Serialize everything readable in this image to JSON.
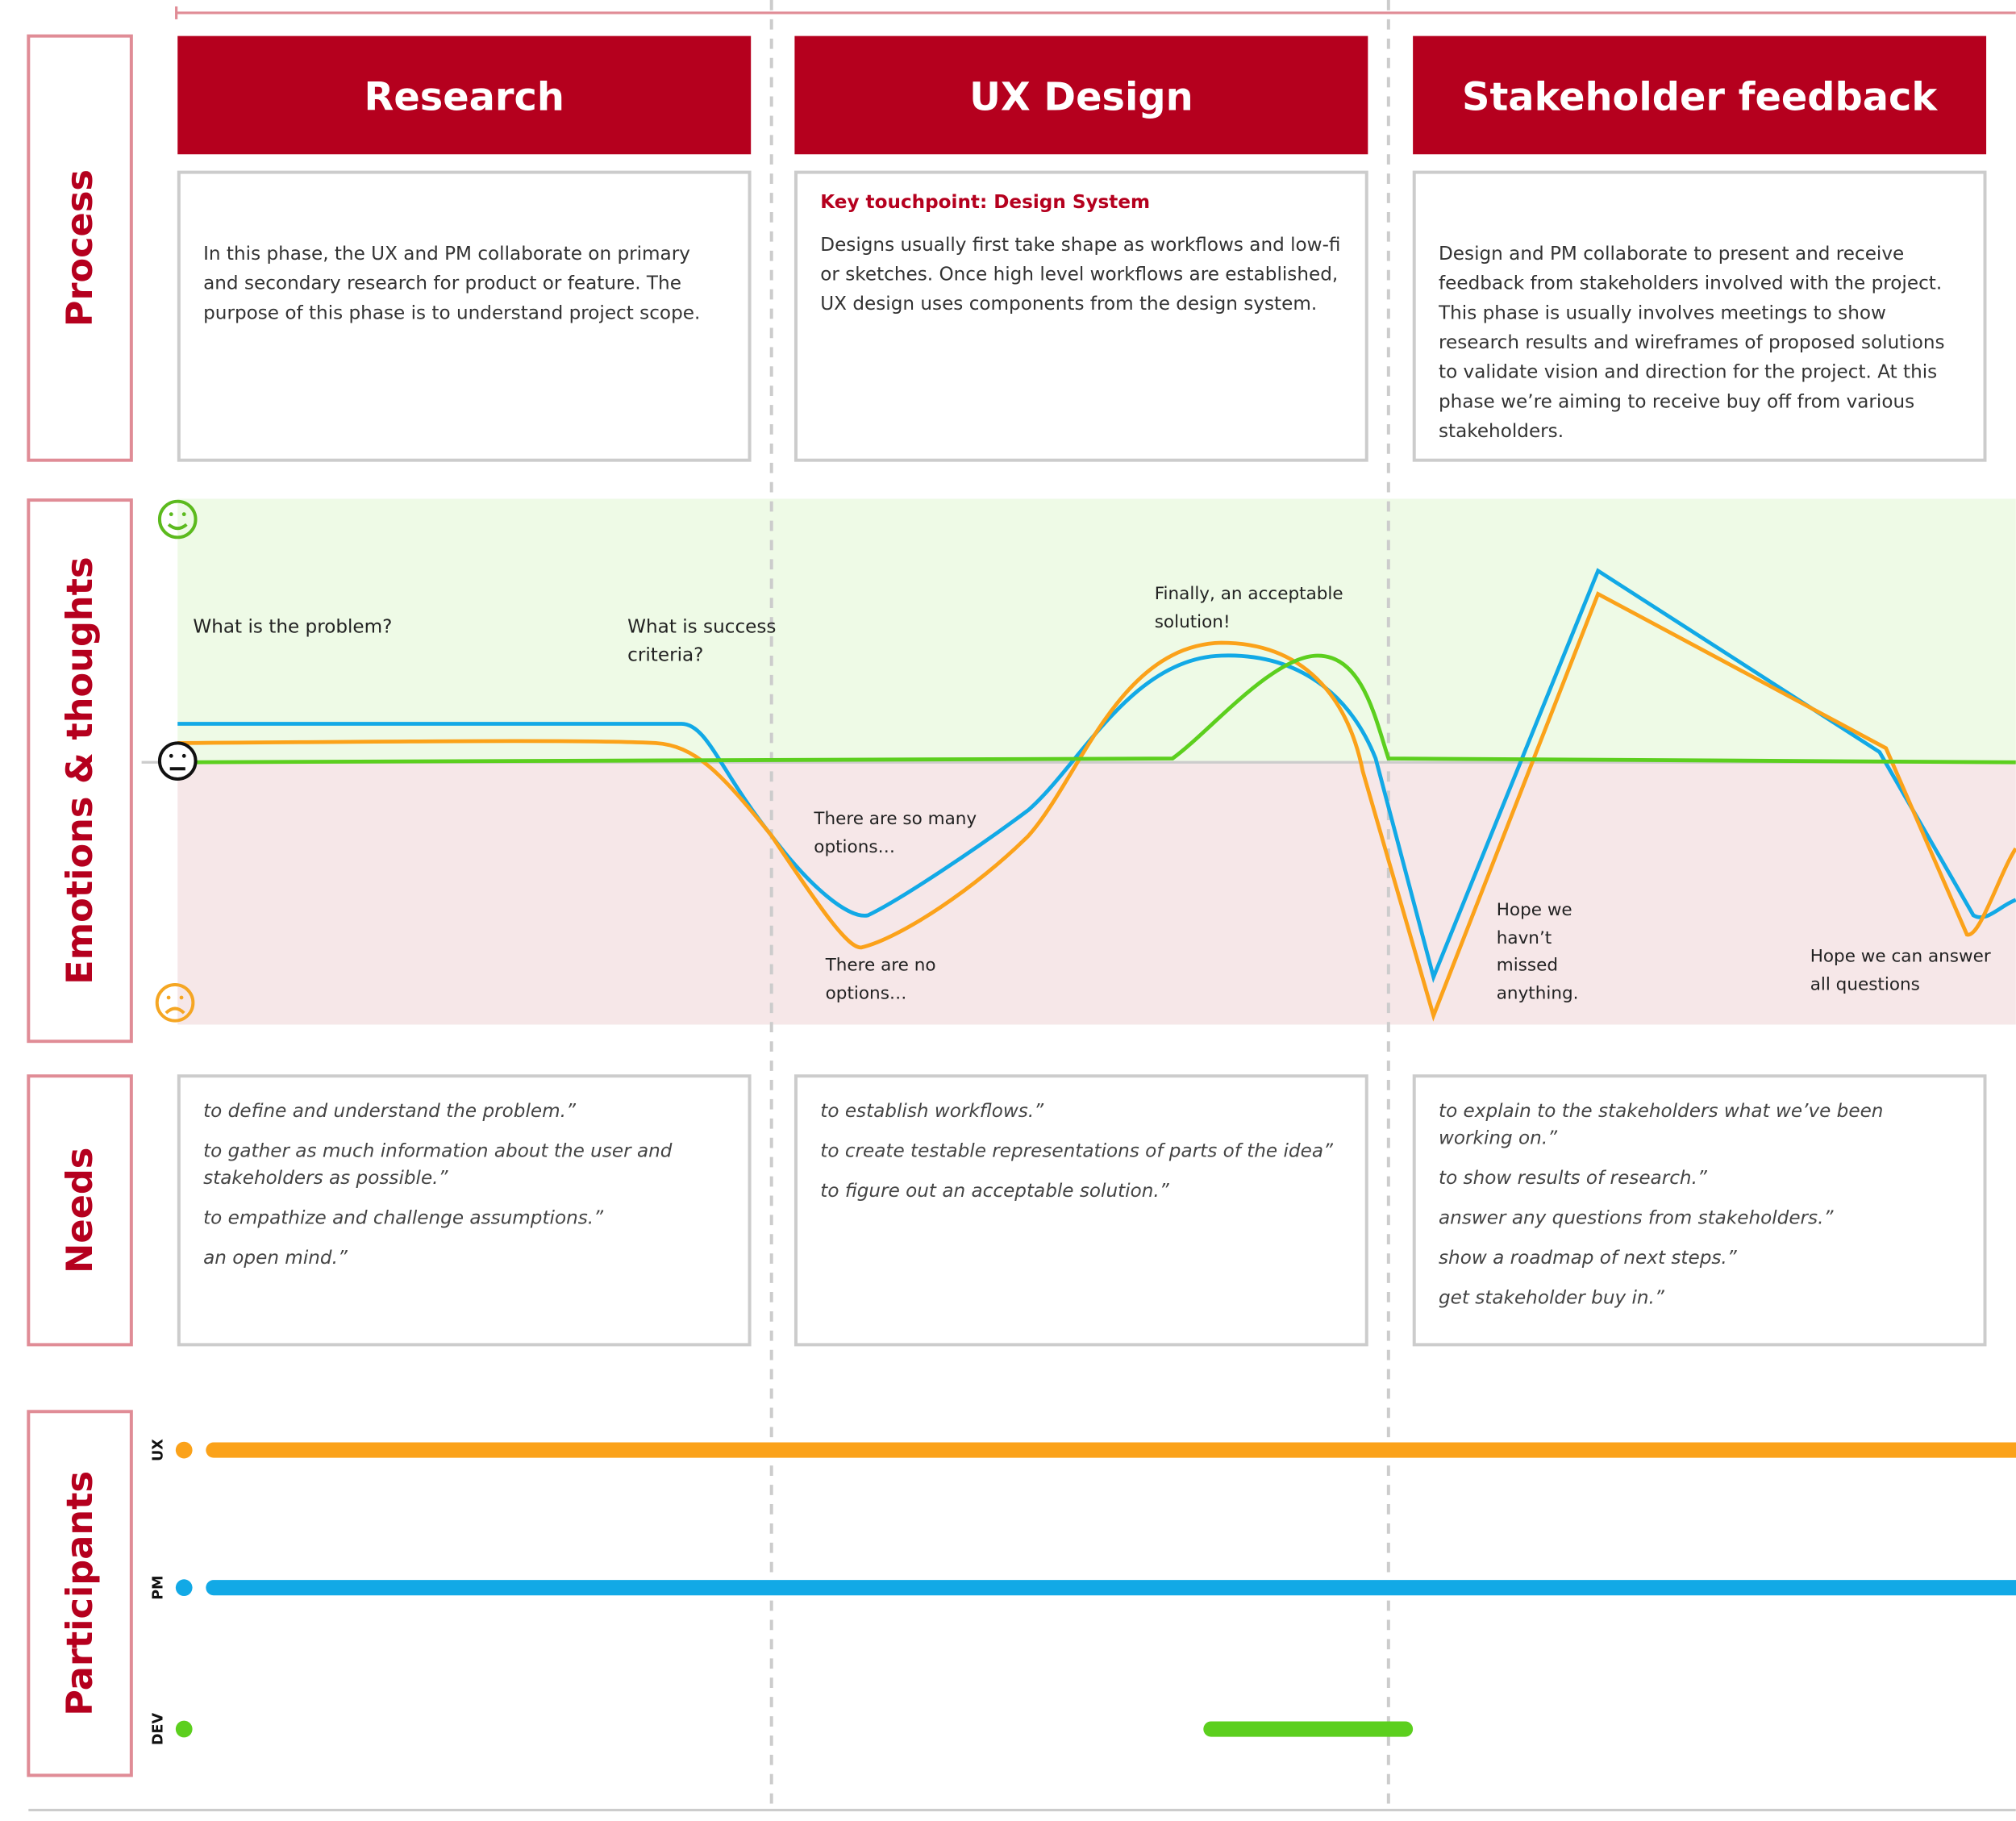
{
  "rows": [
    "Process",
    "Emotions & thoughts",
    "Needs",
    "Participants"
  ],
  "phases": [
    {
      "title": "Research",
      "description": "In this phase, the UX and PM collaborate on primary and secondary research for product or feature. The purpose of this phase is to understand project scope.",
      "needs": [
        "to define and understand the problem.”",
        "to gather as much information about the user and stakeholders as possible.”",
        "to empathize and challenge assumptions.”",
        "an open mind.”"
      ]
    },
    {
      "title": "UX Design",
      "touchpoint": "Key touchpoint: Design System",
      "description": "Designs usually first take shape as workflows and low-fi or sketches. Once high level workflows are established, UX design uses components from the design system.",
      "needs": [
        "to establish workflows.”",
        "to create testable representations of parts of the idea”",
        "to figure out an acceptable solution.”"
      ]
    },
    {
      "title": "Stakeholder feedback",
      "description": "Design and PM collaborate to present and receive feedback from stakeholders involved with the project. This phase is usually involves meetings to show research results and wireframes of proposed solutions to validate vision and direction for the project. At this phase we’re aiming to receive buy off from various stakeholders.",
      "needs": [
        "to explain to the stakeholders what we’ve been working on.”",
        "to show results of research.”",
        "answer any questions from stakeholders.”",
        "show a roadmap of next steps.”",
        "get stakeholder buy in.”"
      ]
    }
  ],
  "annotations": [
    "What is the problem?",
    "What is success criteria?",
    "Finally, an acceptable solution!",
    "There are so many options…",
    "There are no options…",
    "Hope we havn’t missed anything.",
    "Hope we can answer all questions"
  ],
  "participants": [
    "UX",
    "PM",
    "DEV"
  ]
}
